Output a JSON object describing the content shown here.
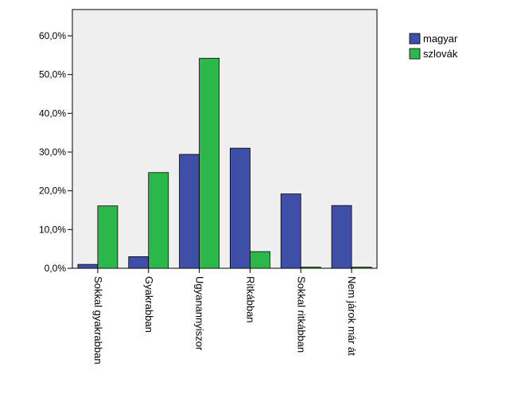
{
  "chart_data": {
    "type": "bar",
    "categories": [
      "Sokkal gyakrabban",
      "Gyakrabban",
      "Ugyanannyiszor",
      "Ritkábban",
      "Sokkal ritkábban",
      "Nem járok már át"
    ],
    "series": [
      {
        "name": "magyar",
        "color": "#3f4fa8",
        "values": [
          1.0,
          3.0,
          29.4,
          31.0,
          19.2,
          16.2
        ]
      },
      {
        "name": "szlovák",
        "color": "#2db84a",
        "values": [
          16.1,
          24.7,
          54.2,
          4.3,
          0.3,
          0.3
        ]
      }
    ],
    "ylim": [
      0,
      60
    ],
    "yticks": [
      0,
      10,
      20,
      30,
      40,
      50,
      60
    ],
    "ytick_labels": [
      "0,0%",
      "10,0%",
      "20,0%",
      "30,0%",
      "40,0%",
      "50,0%",
      "60,0%"
    ],
    "grid": false,
    "legend_position": "top-right",
    "plot_background": "#f0f0f0"
  }
}
